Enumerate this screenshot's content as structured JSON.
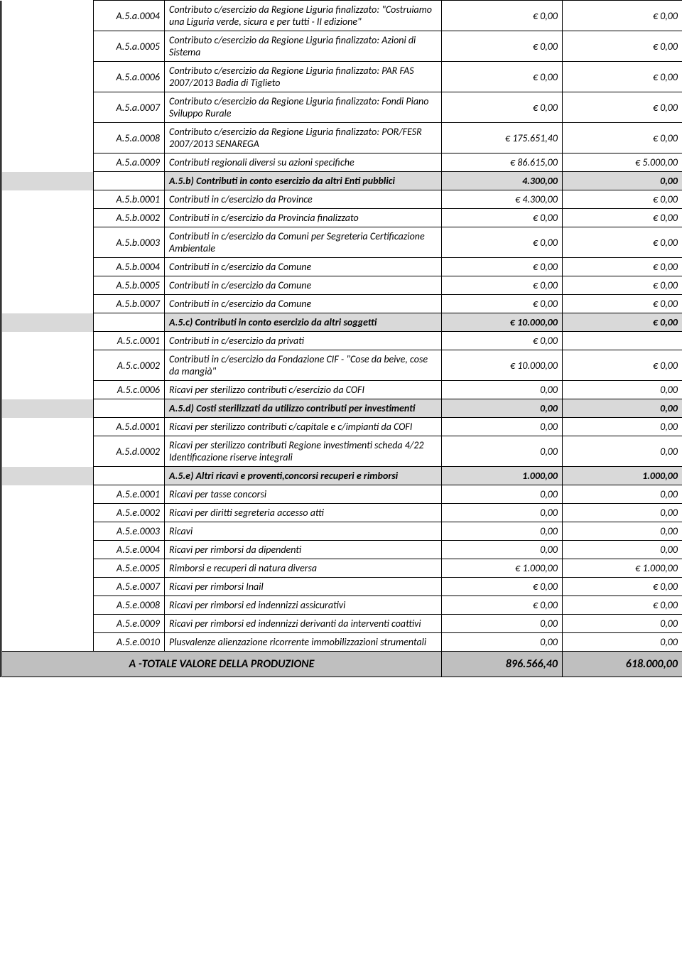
{
  "rows": [
    {
      "type": "data",
      "code": "A.5.a.0004",
      "desc": "Contributo c/esercizio da Regione Liguria finalizzato: \"Costruiamo una Liguria verde, sicura e per tutti - II edizione\"",
      "v1": "€ 0,00",
      "v2": "€ 0,00"
    },
    {
      "type": "data",
      "code": "A.5.a.0005",
      "desc": "Contributo c/esercizio da Regione Liguria finalizzato: Azioni di Sistema",
      "v1": "€ 0,00",
      "v2": "€ 0,00"
    },
    {
      "type": "data",
      "code": "A.5.a.0006",
      "desc": "Contributo c/esercizio da Regione Liguria finalizzato: PAR FAS 2007/2013 Badia di Tiglieto",
      "v1": "€ 0,00",
      "v2": "€ 0,00"
    },
    {
      "type": "data",
      "code": "A.5.a.0007",
      "desc": "Contributo c/esercizio da Regione Liguria finalizzato: Fondi Piano Sviluppo Rurale",
      "v1": "€ 0,00",
      "v2": "€ 0,00"
    },
    {
      "type": "data",
      "code": "A.5.a.0008",
      "desc": "Contributo c/esercizio da Regione Liguria finalizzato: POR/FESR 2007/2013 SENAREGA",
      "v1": "€ 175.651,40",
      "v2": "€ 0,00"
    },
    {
      "type": "data",
      "code": "A.5.a.0009",
      "desc": "Contributi regionali diversi su azioni specifiche",
      "v1": "€ 86.615,00",
      "v2": "€ 5.000,00"
    },
    {
      "type": "subtotal",
      "code": "",
      "desc": "A.5.b) Contributi in conto esercizio da altri Enti pubblici",
      "v1": "4.300,00",
      "v2": "0,00"
    },
    {
      "type": "data",
      "code": "A.5.b.0001",
      "desc": "Contributi in c/esercizio da Province",
      "v1": "€ 4.300,00",
      "v2": "€ 0,00"
    },
    {
      "type": "data",
      "code": "A.5.b.0002",
      "desc": "Contributi in c/esercizio da Provincia finalizzato",
      "v1": "€ 0,00",
      "v2": "€ 0,00"
    },
    {
      "type": "data",
      "code": "A.5.b.0003",
      "desc": "Contributi in c/esercizio da Comuni per Segreteria Certificazione Ambientale",
      "v1": "€ 0,00",
      "v2": "€ 0,00"
    },
    {
      "type": "data",
      "code": "A.5.b.0004",
      "desc": "Contributi in c/esercizio da Comune",
      "v1": "€ 0,00",
      "v2": "€ 0,00"
    },
    {
      "type": "data",
      "code": "A.5.b.0005",
      "desc": "Contributi in c/esercizio da Comune",
      "v1": "€ 0,00",
      "v2": "€ 0,00"
    },
    {
      "type": "data",
      "code": "A.5.b.0007",
      "desc": "Contributi in c/esercizio da Comune",
      "v1": "€ 0,00",
      "v2": "€ 0,00"
    },
    {
      "type": "subtotal",
      "code": "",
      "desc": "A.5.c) Contributi in conto esercizio da altri soggetti",
      "v1": "€ 10.000,00",
      "v2": "€ 0,00"
    },
    {
      "type": "data",
      "code": "A.5.c.0001",
      "desc": "Contributi in c/esercizio da privati",
      "v1": "€ 0,00",
      "v2": ""
    },
    {
      "type": "data",
      "code": "A.5.c.0002",
      "desc": "Contributi in c/esercizio da Fondazione CIF - \"Cose da beive, cose da mangià\"",
      "v1": "€ 10.000,00",
      "v2": "€ 0,00"
    },
    {
      "type": "data",
      "code": "A.5.c.0006",
      "desc": "Ricavi per sterilizzo contributi c/esercizio da COFI",
      "v1": "0,00",
      "v2": "0,00"
    },
    {
      "type": "subtotal",
      "code": "",
      "desc": "A.5.d) Costi sterilizzati da utilizzo contributi per investimenti",
      "v1": "0,00",
      "v2": "0,00"
    },
    {
      "type": "data",
      "code": "A.5.d.0001",
      "desc": "Ricavi per sterilizzo contributi c/capitale e c/impianti da COFI",
      "v1": "0,00",
      "v2": "0,00"
    },
    {
      "type": "data",
      "code": "A.5.d.0002",
      "desc": "Ricavi per sterilizzo contributi Regione investimenti scheda 4/22 Identificazione riserve integrali",
      "v1": "0,00",
      "v2": "0,00"
    },
    {
      "type": "subtotal",
      "code": "",
      "desc": "A.5.e) Altri ricavi e proventi,concorsi recuperi e rimborsi",
      "v1": "1.000,00",
      "v2": "1.000,00"
    },
    {
      "type": "data",
      "code": "A.5.e.0001",
      "desc": "Ricavi per tasse concorsi",
      "v1": "0,00",
      "v2": "0,00"
    },
    {
      "type": "data",
      "code": "A.5.e.0002",
      "desc": "Ricavi per diritti segreteria accesso atti",
      "v1": "0,00",
      "v2": "0,00"
    },
    {
      "type": "data",
      "code": "A.5.e.0003",
      "desc": "Ricavi",
      "v1": "0,00",
      "v2": "0,00"
    },
    {
      "type": "data",
      "code": "A.5.e.0004",
      "desc": "Ricavi per rimborsi da dipendenti",
      "v1": "0,00",
      "v2": "0,00"
    },
    {
      "type": "data",
      "code": "A.5.e.0005",
      "desc": "Rimborsi e recuperi di natura diversa",
      "v1": "€ 1.000,00",
      "v2": "€ 1.000,00"
    },
    {
      "type": "data",
      "code": "A.5.e.0007",
      "desc": "Ricavi per rimborsi Inail",
      "v1": "€ 0,00",
      "v2": "€ 0,00"
    },
    {
      "type": "data",
      "code": "A.5.e.0008",
      "desc": "Ricavi per rimborsi ed indennizzi assicurativi",
      "v1": "€ 0,00",
      "v2": "€ 0,00"
    },
    {
      "type": "data",
      "code": "A.5.e.0009",
      "desc": "Ricavi per rimborsi ed indennizzi derivanti da interventi coattivi",
      "v1": "0,00",
      "v2": "0,00"
    },
    {
      "type": "data",
      "code": "A.5.e.0010",
      "desc": "Plusvalenze alienzazione ricorrente immobilizzazioni strumentali",
      "v1": "0,00",
      "v2": "0,00"
    }
  ],
  "total": {
    "label": "A -TOTALE VALORE DELLA PRODUZIONE",
    "v1": "896.566,40",
    "v2": "618.000,00"
  }
}
